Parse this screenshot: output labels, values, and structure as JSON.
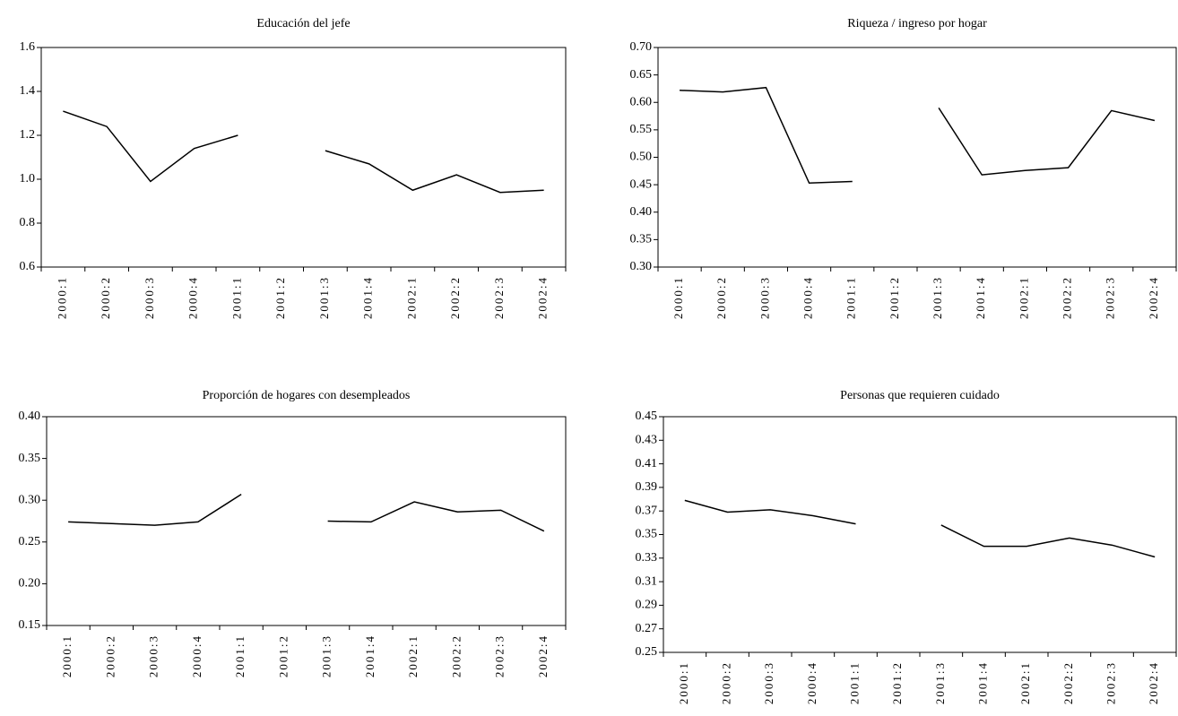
{
  "chart_data": [
    {
      "type": "line",
      "title": "Educación del jefe",
      "categories": [
        "2000:1",
        "2000:2",
        "2000:3",
        "2000:4",
        "2001:1",
        "2001:2",
        "2001:3",
        "2001:4",
        "2002:1",
        "2002:2",
        "2002:3",
        "2002:4"
      ],
      "values": [
        1.31,
        1.24,
        0.99,
        1.14,
        1.2,
        null,
        1.13,
        1.07,
        0.95,
        1.02,
        0.94,
        0.95
      ],
      "color": "#000000",
      "ylim": [
        0.6,
        1.6
      ],
      "yticks": [
        0.6,
        0.8,
        {
          "value": 1,
          "label": "1.0"
        },
        1.2,
        1.4,
        1.6
      ]
    },
    {
      "type": "line",
      "title": "Riqueza / ingreso por hogar",
      "categories": [
        "2000:1",
        "2000:2",
        "2000:3",
        "2000:4",
        "2001:1",
        "2001:2",
        "2001:3",
        "2001:4",
        "2002:1",
        "2002:2",
        "2002:3",
        "2002:4"
      ],
      "values": [
        0.622,
        0.619,
        0.627,
        0.453,
        0.456,
        null,
        0.59,
        0.468,
        0.476,
        0.481,
        0.585,
        0.567
      ],
      "color": "#000000",
      "ylim": [
        0.3,
        0.7
      ],
      "yticks": [
        {
          "value": 0.3,
          "label": "0.30"
        },
        0.35,
        {
          "value": 0.4,
          "label": "0.40"
        },
        0.45,
        {
          "value": 0.5,
          "label": "0.50"
        },
        0.55,
        {
          "value": 0.6,
          "label": "0.60"
        },
        0.65,
        {
          "value": 0.7,
          "label": "0.70"
        }
      ]
    },
    {
      "type": "line",
      "title": "Proporción de hogares con desempleados",
      "categories": [
        "2000:1",
        "2000:2",
        "2000:3",
        "2000:4",
        "2001:1",
        "2001:2",
        "2001:3",
        "2001:4",
        "2002:1",
        "2002:2",
        "2002:3",
        "2002:4"
      ],
      "values": [
        0.274,
        0.272,
        0.27,
        0.274,
        0.307,
        null,
        0.275,
        0.274,
        0.298,
        0.286,
        0.288,
        0.263
      ],
      "color": "#000000",
      "ylim": [
        0.15,
        0.4
      ],
      "yticks": [
        0.15,
        {
          "value": 0.2,
          "label": "0.20"
        },
        0.25,
        {
          "value": 0.3,
          "label": "0.30"
        },
        0.35,
        {
          "value": 0.4,
          "label": "0.40"
        }
      ]
    },
    {
      "type": "line",
      "title": "Personas que requieren cuidado",
      "categories": [
        "2000:1",
        "2000:2",
        "2000:3",
        "2000:4",
        "2001:1",
        "2001:2",
        "2001:3",
        "2001:4",
        "2002:1",
        "2002:2",
        "2002:3",
        "2002:4"
      ],
      "values": [
        0.379,
        0.369,
        0.371,
        0.366,
        0.359,
        null,
        0.358,
        0.34,
        0.34,
        0.347,
        0.341,
        0.331
      ],
      "color": "#000000",
      "ylim": [
        0.25,
        0.45
      ],
      "yticks": [
        0.25,
        0.27,
        0.29,
        0.31,
        0.33,
        0.35,
        0.37,
        0.39,
        0.41,
        0.43,
        0.45
      ]
    }
  ]
}
